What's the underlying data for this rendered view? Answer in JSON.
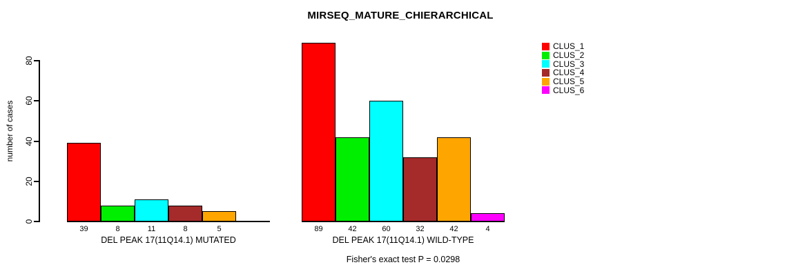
{
  "chart_data": {
    "type": "bar",
    "title": "MIRSEQ_MATURE_CHIERARCHICAL",
    "ylabel": "number of cases",
    "xlabel": "",
    "ylim": [
      0,
      80
    ],
    "y_ticks": [
      0,
      20,
      40,
      60,
      80
    ],
    "grid": false,
    "legend_position": "right",
    "series_names": [
      "CLUS_1",
      "CLUS_2",
      "CLUS_3",
      "CLUS_4",
      "CLUS_5",
      "CLUS_6"
    ],
    "colors": [
      "#FF0000",
      "#00EE00",
      "#00FFFF",
      "#A52A2A",
      "#FFA500",
      "#FF00FF"
    ],
    "groups": [
      {
        "label": "DEL PEAK 17(11Q14.1) MUTATED",
        "values": [
          39,
          8,
          11,
          8,
          5,
          null
        ],
        "slots": 6
      },
      {
        "label": "DEL PEAK 17(11Q14.1) WILD-TYPE",
        "values": [
          89,
          42,
          60,
          32,
          42,
          4
        ],
        "slots": 6
      }
    ],
    "annotation": "Fisher's exact test P = 0.0298"
  }
}
